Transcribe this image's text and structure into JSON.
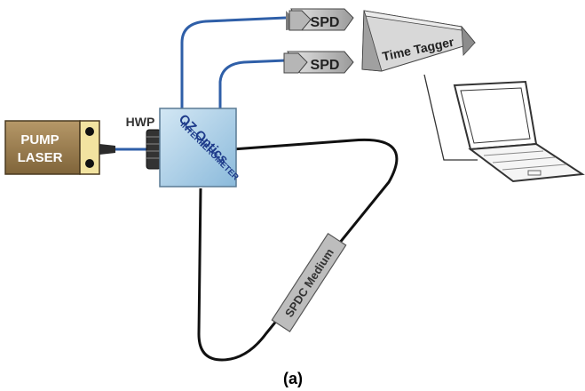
{
  "diagram": {
    "pump_laser": {
      "line1": "PUMP",
      "line2": "LASER"
    },
    "hwp": "HWP",
    "interferometer": {
      "line1": "OZ Optics",
      "line2": "INTERFEROMETER"
    },
    "spd_top": "SPD",
    "spd_bottom": "SPD",
    "time_tagger": "Time Tagger",
    "spdc": "SPDC Medium",
    "caption": "(a)"
  },
  "colors": {
    "fiber_blue": "#2f5fa8",
    "laser_body": "#9c8050",
    "laser_mount": "#f2e3a0",
    "interferometer_fill": "#a9cde6",
    "spdc_fill": "#bdbdbd",
    "loop_black": "#111111"
  }
}
